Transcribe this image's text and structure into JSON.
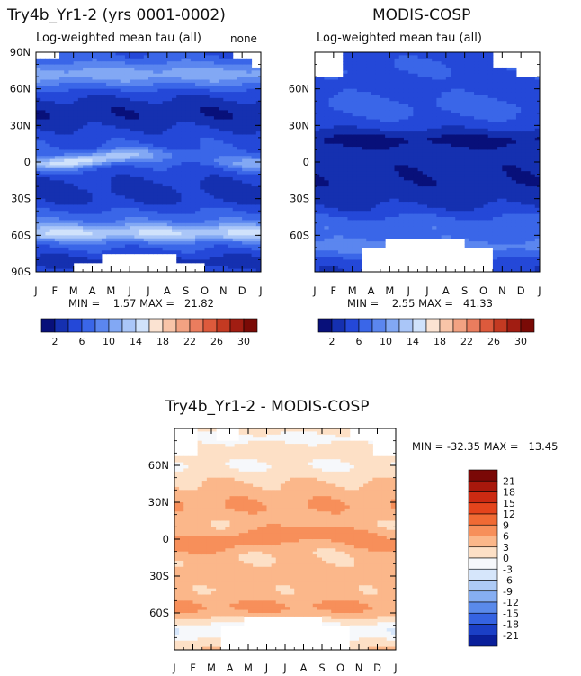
{
  "chart_data": [
    {
      "type": "heatmap",
      "panel": "top-left",
      "title": "Try4b_Yr1-2 (yrs 0001-0002)",
      "subtitle": "Log-weighted mean tau (all)",
      "corner_label": "none",
      "x_tick_labels": [
        "J",
        "F",
        "M",
        "A",
        "M",
        "J",
        "J",
        "A",
        "S",
        "O",
        "N",
        "D",
        "J"
      ],
      "y_ticks": [
        {
          "lat": 90,
          "label": "90N"
        },
        {
          "lat": 60,
          "label": "60N"
        },
        {
          "lat": 30,
          "label": "30N"
        },
        {
          "lat": 0,
          "label": "0"
        },
        {
          "lat": -30,
          "label": "30S"
        },
        {
          "lat": -60,
          "label": "60S"
        },
        {
          "lat": -90,
          "label": "90S"
        }
      ],
      "ylim": [
        -90,
        90
      ],
      "stats_label": "MIN =    1.57 MAX =   21.82",
      "min": 1.57,
      "max": 21.82,
      "field": "model",
      "colorbar": {
        "labels": [
          "2",
          "6",
          "10",
          "14",
          "18",
          "22",
          "26",
          "30"
        ],
        "colors": [
          "#08107a",
          "#1530b0",
          "#2448d8",
          "#3a66e8",
          "#5b86ef",
          "#82a8f4",
          "#aac6f8",
          "#d0e2fb",
          "#fbe3d2",
          "#f8c4a8",
          "#f2a282",
          "#ea7d5e",
          "#dd5a3c",
          "#c43a22",
          "#a11d12",
          "#7a0a06"
        ]
      }
    },
    {
      "type": "heatmap",
      "panel": "top-right",
      "title": "MODIS-COSP",
      "subtitle": "Log-weighted mean tau (all)",
      "x_tick_labels": [
        "J",
        "F",
        "M",
        "A",
        "M",
        "J",
        "J",
        "A",
        "S",
        "O",
        "N",
        "D",
        "J"
      ],
      "y_ticks": [
        {
          "lat": 60,
          "label": "60N"
        },
        {
          "lat": 30,
          "label": "30N"
        },
        {
          "lat": 0,
          "label": "0"
        },
        {
          "lat": -30,
          "label": "30S"
        },
        {
          "lat": -60,
          "label": "60S"
        }
      ],
      "ylim": [
        -90,
        90
      ],
      "stats_label": "MIN =    2.55 MAX =   41.33",
      "min": 2.55,
      "max": 41.33,
      "field": "obs",
      "colorbar": {
        "labels": [
          "2",
          "6",
          "10",
          "14",
          "18",
          "22",
          "26",
          "30"
        ],
        "colors": [
          "#08107a",
          "#1530b0",
          "#2448d8",
          "#3a66e8",
          "#5b86ef",
          "#82a8f4",
          "#aac6f8",
          "#d0e2fb",
          "#fbe3d2",
          "#f8c4a8",
          "#f2a282",
          "#ea7d5e",
          "#dd5a3c",
          "#c43a22",
          "#a11d12",
          "#7a0a06"
        ]
      }
    },
    {
      "type": "heatmap",
      "panel": "bottom",
      "title": "Try4b_Yr1-2 - MODIS-COSP",
      "x_tick_labels": [
        "J",
        "F",
        "M",
        "A",
        "M",
        "J",
        "J",
        "A",
        "S",
        "O",
        "N",
        "D",
        "J"
      ],
      "y_ticks": [
        {
          "lat": 60,
          "label": "60N"
        },
        {
          "lat": 30,
          "label": "30N"
        },
        {
          "lat": 0,
          "label": "0"
        },
        {
          "lat": -30,
          "label": "30S"
        },
        {
          "lat": -60,
          "label": "60S"
        }
      ],
      "ylim": [
        -90,
        90
      ],
      "stats_label": "MIN = -32.35 MAX =   13.45",
      "min": -32.35,
      "max": 13.45,
      "field": "diff",
      "colorbar": {
        "labels": [
          "21",
          "18",
          "15",
          "12",
          "9",
          "6",
          "3",
          "0",
          "-3",
          "-6",
          "-9",
          "-12",
          "-15",
          "-18",
          "-21"
        ],
        "colors": [
          "#7a0806",
          "#a8180c",
          "#cc2a12",
          "#e4441c",
          "#f06a34",
          "#f78f5a",
          "#fbb78a",
          "#fde0c6",
          "#f6f8fb",
          "#d6e6fb",
          "#aecbf6",
          "#86aef2",
          "#5a8aeb",
          "#3563e2",
          "#1b3fc6",
          "#0a1f9a"
        ]
      }
    }
  ]
}
